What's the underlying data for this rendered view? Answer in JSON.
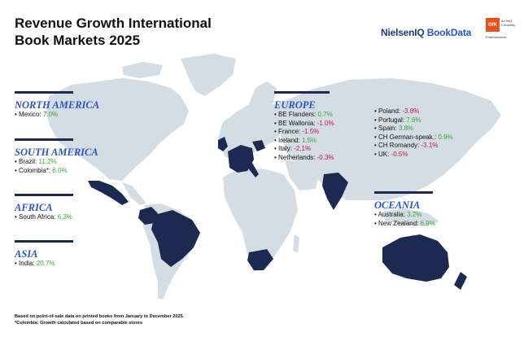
{
  "title_lines": [
    "Revenue Growth International",
    "Book Markets 2025"
  ],
  "brand": {
    "nielsen_a": "NielsenIQ",
    "nielsen_b": " BookData",
    "gfk": "GfK",
    "gfk_tag_1": "An NIQ",
    "gfk_tag_2": "Company",
    "gfk_sub": "Entertainment"
  },
  "colors": {
    "highlight": "#1c2a52",
    "land": "#d3dde3",
    "heading": "#2a54c8",
    "positive": "#39a935",
    "negative": "#c0144f"
  },
  "regions": {
    "north_america": {
      "name": "NORTH AMERICA",
      "items": [
        {
          "label": "Mexico: ",
          "value": "7.0%",
          "sign": "pos"
        }
      ]
    },
    "south_america": {
      "name": "SOUTH AMERICA",
      "items": [
        {
          "label": "Brazil: ",
          "value": "11.2%",
          "sign": "pos"
        },
        {
          "label": "Colombia*: ",
          "value": "6.0%",
          "sign": "pos"
        }
      ]
    },
    "africa": {
      "name": "AFRICA",
      "items": [
        {
          "label": "South Africa: ",
          "value": "6.2%",
          "sign": "pos"
        }
      ]
    },
    "asia": {
      "name": "ASIA",
      "items": [
        {
          "label": "India: ",
          "value": "20.7%",
          "sign": "pos"
        }
      ]
    },
    "europe": {
      "name": "EUROPE",
      "col1": [
        {
          "label": "BE Flanders: ",
          "value": "0.7%",
          "sign": "pos"
        },
        {
          "label": "BE Wallonia: ",
          "value": "-1.0%",
          "sign": "neg"
        },
        {
          "label": "France: ",
          "value": "-1.5%",
          "sign": "neg"
        },
        {
          "label": "Ireland: ",
          "value": "1.5%",
          "sign": "pos"
        },
        {
          "label": "Italy: ",
          "value": "-2.1%",
          "sign": "neg"
        },
        {
          "label": "Netherlands: ",
          "value": "-0.3%",
          "sign": "neg"
        }
      ],
      "col2": [
        {
          "label": "Poland: ",
          "value": "-3.8%",
          "sign": "neg"
        },
        {
          "label": "Portugal: ",
          "value": "7.6%",
          "sign": "pos"
        },
        {
          "label": "Spain: ",
          "value": "3.8%",
          "sign": "pos"
        },
        {
          "label": "CH German-speak.: ",
          "value": "0.9%",
          "sign": "pos"
        },
        {
          "label": "CH Romandy: ",
          "value": "-3.1%",
          "sign": "neg"
        },
        {
          "label": "UK: ",
          "value": "-0.5%",
          "sign": "neg"
        }
      ]
    },
    "oceania": {
      "name": "OCEANIA",
      "items": [
        {
          "label": "Australia: ",
          "value": "3.2%",
          "sign": "pos"
        },
        {
          "label": "New Zealand: ",
          "value": "6.9%",
          "sign": "pos"
        }
      ]
    }
  },
  "footnotes": [
    "Based on point-of-sale data on printed books from January to December 2025.",
    "*Colombia: Growth calculated based on comparable stores"
  ]
}
